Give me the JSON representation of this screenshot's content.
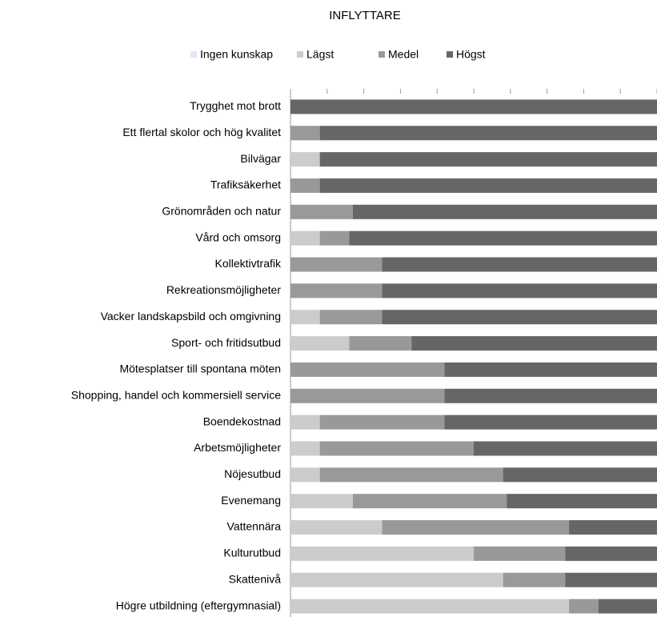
{
  "chart_data": {
    "type": "stacked_barh",
    "title": "INFLYTTARE",
    "categories": [
      "Trygghet mot brott",
      "Ett flertal skolor och hög kvalitet",
      "Bilvägar",
      "Trafiksäkerhet",
      "Grönområden och natur",
      "Vård och omsorg",
      "Kollektivtrafik",
      "Rekreationsmöjligheter",
      "Vacker landskapsbild och omgivning",
      "Sport- och fritidsutbud",
      "Mötesplatser till spontana möten",
      "Shopping, handel och kommersiell service",
      "Boendekostnad",
      "Arbetsmöjligheter",
      "Nöjesutbud",
      "Evenemang",
      "Vattennära",
      "Kulturutbud",
      "Skattenivå",
      "Högre utbildning (eftergymnasial)"
    ],
    "series": [
      {
        "name": "Ingen kunskap",
        "color": "#e6e6fa",
        "values": [
          0,
          0,
          0,
          0,
          0,
          0,
          0,
          0,
          0,
          0,
          0,
          0,
          0,
          0,
          0,
          0,
          0,
          0,
          0,
          0
        ]
      },
      {
        "name": "Lägst",
        "color": "#cccccc",
        "values": [
          0,
          0,
          8,
          0,
          0,
          8,
          0,
          0,
          8,
          16,
          0,
          0,
          8,
          8,
          8,
          17,
          25,
          50,
          58,
          76
        ]
      },
      {
        "name": "Medel",
        "color": "#999999",
        "values": [
          0,
          8,
          0,
          8,
          17,
          8,
          25,
          25,
          17,
          17,
          42,
          42,
          34,
          42,
          50,
          42,
          51,
          25,
          17,
          8
        ]
      },
      {
        "name": "Högst",
        "color": "#666666",
        "values": [
          100,
          92,
          92,
          92,
          83,
          84,
          75,
          75,
          75,
          67,
          58,
          58,
          58,
          50,
          42,
          41,
          24,
          25,
          25,
          16
        ]
      }
    ],
    "xlim": [
      0,
      100
    ],
    "xticks": [
      0,
      10,
      20,
      30,
      40,
      50,
      60,
      70,
      80,
      90,
      100
    ]
  }
}
